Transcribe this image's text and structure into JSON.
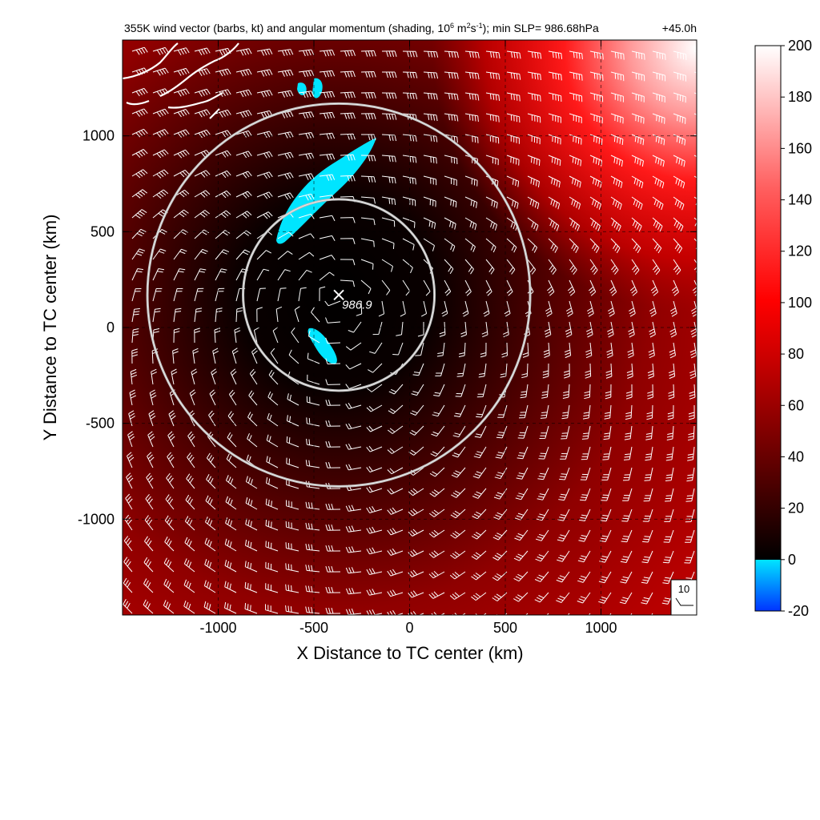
{
  "chart_data": {
    "type": "heatmap",
    "title": "355K wind vector (barbs, kt) and angular momentum (shading, 10",
    "title_exp1": "6",
    "title_mid1": " m",
    "title_exp2": "2",
    "title_mid2": "s",
    "title_exp3": "-1",
    "title_end": "); min SLP= 986.68hPa",
    "time_label": "+45.0h",
    "xlabel": "X Distance to TC center (km)",
    "ylabel": "Y Distance to TC center (km)",
    "xlim": [
      -1500,
      1500
    ],
    "ylim": [
      -1500,
      1500
    ],
    "x_ticks": [
      -1000,
      -500,
      0,
      500,
      1000
    ],
    "x_tick_labels": [
      "-1000",
      "-500",
      "0",
      "500",
      "1000"
    ],
    "y_ticks": [
      -1000,
      -500,
      0,
      500,
      1000
    ],
    "y_tick_labels": [
      "-1000",
      "-500",
      "0",
      "500",
      "1000"
    ],
    "grid": true,
    "colorbar": {
      "min": -20,
      "max": 200,
      "ticks": [
        -20,
        0,
        20,
        40,
        60,
        80,
        100,
        120,
        140,
        160,
        180,
        200
      ],
      "tick_labels": [
        "-20",
        "0",
        "20",
        "40",
        "60",
        "80",
        "100",
        "120",
        "140",
        "160",
        "180",
        "200"
      ]
    },
    "center": {
      "x": -370,
      "y": 170,
      "label": "986.9"
    },
    "range_rings_km": [
      500,
      1000
    ],
    "reference_barb_label": "10",
    "colors": {
      "negative_low": "#0033ff",
      "negative_high": "#00e5ff",
      "zero": "#000000",
      "mid": "#cc0000",
      "high": "#ff0000",
      "max": "#ffffff"
    }
  }
}
